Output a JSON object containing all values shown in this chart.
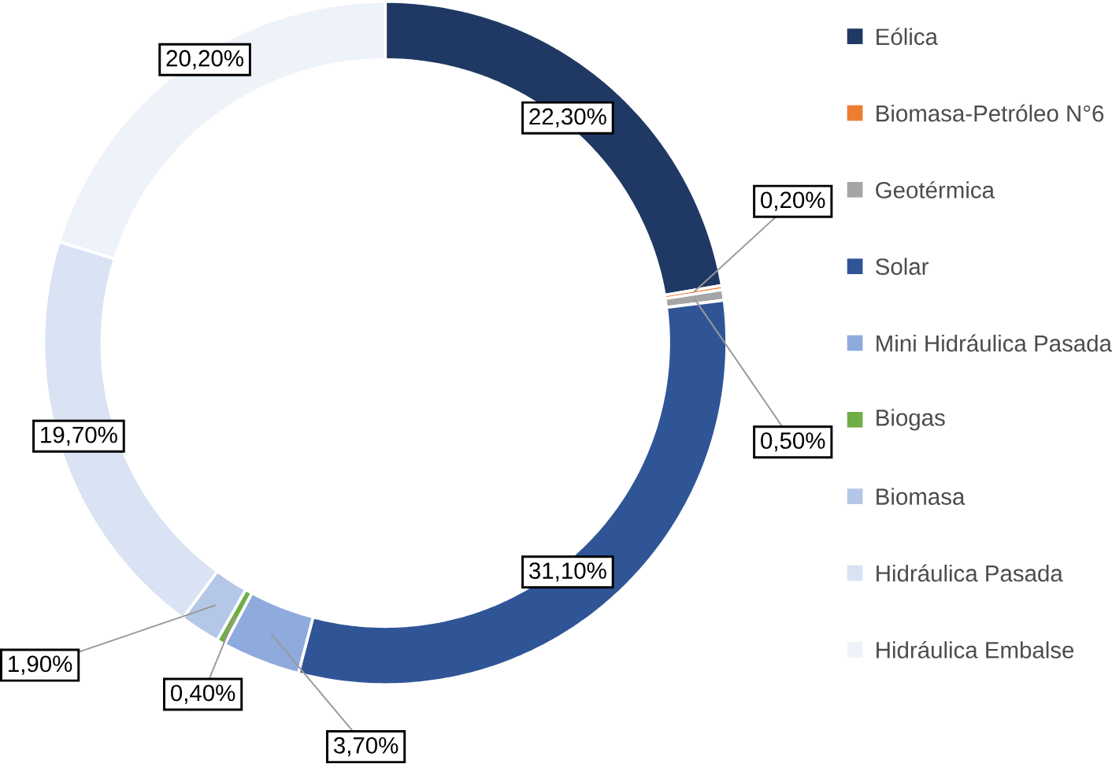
{
  "chart_data": {
    "type": "donut",
    "categories": [
      "Eólica",
      "Biomasa-Petróleo N°6",
      "Geotérmica",
      "Solar",
      "Mini Hidráulica Pasada",
      "Biogas",
      "Biomasa",
      "Hidráulica Pasada",
      "Hidráulica Embalse"
    ],
    "values": [
      22.3,
      0.2,
      0.5,
      31.1,
      3.7,
      0.4,
      1.9,
      19.7,
      20.2
    ],
    "value_labels": [
      "22,30%",
      "0,20%",
      "0,50%",
      "31,10%",
      "3,70%",
      "0,40%",
      "1,90%",
      "19,70%",
      "20,20%"
    ],
    "colors": [
      "#203864",
      "#ed7d31",
      "#a5a5a5",
      "#2f5597",
      "#8faadc",
      "#70ad47",
      "#b4c7e7",
      "#dae3f3",
      "#eef2f9"
    ],
    "legend": "right"
  }
}
